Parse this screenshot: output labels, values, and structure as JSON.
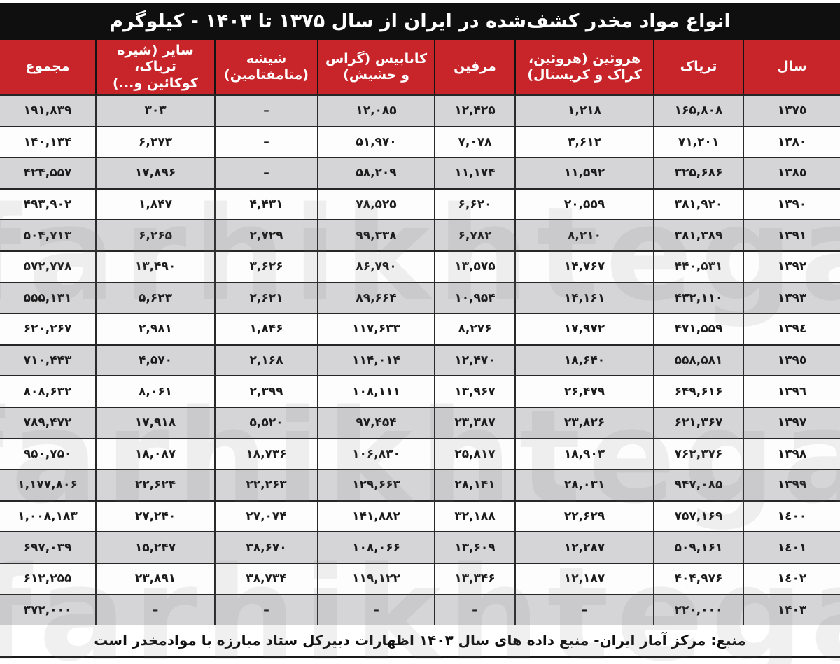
{
  "title": "انواع مواد مخدر کشف‌شده در ایران از سال ۱۳۷۵ تا ۱۴۰۳ - کیلوگرم",
  "header": {
    "columns": [
      {
        "key": "year",
        "label": "سال"
      },
      {
        "key": "opium",
        "label": "تریاک"
      },
      {
        "key": "heroin",
        "label": "هروئین (هروئین،\nکراک و کریستال)"
      },
      {
        "key": "morphine",
        "label": "مرفین"
      },
      {
        "key": "cannabis",
        "label": "کانابیس (گراس\nو حشیش)"
      },
      {
        "key": "meth",
        "label": "شیشه\n(متامفتامین)"
      },
      {
        "key": "other",
        "label": "سایر (شیره تریاک،\nکوکائین و...)"
      },
      {
        "key": "total",
        "label": "مجموع"
      }
    ]
  },
  "footer": {
    "text": "منبع: مرکز آمار ایران- منبع داده های سال ۱۴۰۳ اظهارات دبیرکل ستاد مبارزه با موادمخدر است"
  },
  "watermark": "farhikhtegan",
  "colors": {
    "accent_red": "#c8252b",
    "title_bar_black": "#0f0f0f",
    "row_alt_gray": "#d5d5d7",
    "grid_border": "#262626"
  },
  "empty_cell_glyph": "–",
  "chart_data": {
    "type": "table",
    "title": "انواع مواد مخدر کشف‌شده در ایران از سال ۱۳۷۵ تا ۱۴۰۳ - کیلوگرم",
    "unit": "کیلوگرم",
    "columns_rtl": [
      "سال",
      "تریاک",
      "هروئین (هروئین، کراک و کریستال)",
      "مرفین",
      "کانابیس (گراس و حشیش)",
      "شیشه (متامفتامین)",
      "سایر (شیره تریاک، کوکائین و...)",
      "مجموع"
    ],
    "rows_display": [
      [
        "۱۳۷٥",
        "۱۶۵,۸۰۸",
        "۱,۲۱۸",
        "۱۲,۴۲۵",
        "۱۲,۰۸۵",
        "–",
        "۳۰۳",
        "۱۹۱,۸۳۹"
      ],
      [
        "۱۳۸۰",
        "۷۱,۲۰۱",
        "۳,۶۱۲",
        "۷,۰۷۸",
        "۵۱,۹۷۰",
        "–",
        "۶,۲۷۳",
        "۱۴۰,۱۳۴"
      ],
      [
        "۱۳۸٥",
        "۳۲۵,۶۸۶",
        "۱۱,۵۹۲",
        "۱۱,۱۷۴",
        "۵۸,۲۰۹",
        "–",
        "۱۷,۸۹۶",
        "۴۲۴,۵۵۷"
      ],
      [
        "۱۳۹۰",
        "۳۸۱,۹۲۰",
        "۲۰,۵۵۹",
        "۶,۶۲۰",
        "۷۸,۵۲۵",
        "۴,۴۳۱",
        "۱,۸۴۷",
        "۴۹۳,۹۰۲"
      ],
      [
        "۱۳۹۱",
        "۳۸۱,۳۸۹",
        "۸,۲۱۰",
        "۶,۷۸۲",
        "۹۹,۳۳۸",
        "۲,۷۲۹",
        "۶,۲۶۵",
        "۵۰۴,۷۱۳"
      ],
      [
        "۱۳۹۲",
        "۴۴۰,۵۳۱",
        "۱۴,۷۶۷",
        "۱۳,۵۷۵",
        "۸۶,۷۹۰",
        "۳,۶۲۶",
        "۱۳,۴۹۰",
        "۵۷۲,۷۷۸"
      ],
      [
        "۱۳۹۳",
        "۴۳۲,۱۱۰",
        "۱۴,۱۶۱",
        "۱۰,۹۵۴",
        "۸۹,۶۶۴",
        "۲,۶۲۱",
        "۵,۶۲۳",
        "۵۵۵,۱۳۱"
      ],
      [
        "۱۳۹٤",
        "۴۷۱,۵۵۹",
        "۱۷,۹۷۲",
        "۸,۲۷۶",
        "۱۱۷,۶۳۳",
        "۱,۸۴۶",
        "۲,۹۸۱",
        "۶۲۰,۲۶۷"
      ],
      [
        "۱۳۹٥",
        "۵۵۸,۵۸۱",
        "۱۸,۶۴۰",
        "۱۲,۴۷۰",
        "۱۱۴,۰۱۴",
        "۲,۱۶۸",
        "۴,۵۷۰",
        "۷۱۰,۴۴۳"
      ],
      [
        "۱۳۹٦",
        "۶۴۹,۶۱۶",
        "۲۶,۴۷۹",
        "۱۳,۹۶۷",
        "۱۰۸,۱۱۱",
        "۲,۳۹۹",
        "۸,۰۶۱",
        "۸۰۸,۶۳۲"
      ],
      [
        "۱۳۹۷",
        "۶۲۱,۳۶۷",
        "۲۳,۸۲۶",
        "۲۳,۳۸۷",
        "۹۷,۴۵۴",
        "۵,۵۲۰",
        "۱۷,۹۱۸",
        "۷۸۹,۴۷۲"
      ],
      [
        "۱۳۹۸",
        "۷۶۲,۳۷۶",
        "۱۸,۹۰۳",
        "۲۵,۸۱۷",
        "۱۰۶,۸۳۰",
        "۱۸,۷۳۶",
        "۱۸,۰۸۷",
        "۹۵۰,۷۵۰"
      ],
      [
        "۱۳۹۹",
        "۹۴۷,۰۸۵",
        "۲۸,۰۳۱",
        "۲۸,۱۴۱",
        "۱۲۹,۶۶۳",
        "۲۲,۲۶۳",
        "۲۲,۶۲۴",
        "۱,۱۷۷,۸۰۶"
      ],
      [
        "۱٤۰۰",
        "۷۵۷,۱۶۹",
        "۲۲,۶۲۹",
        "۳۲,۱۸۸",
        "۱۴۱,۸۸۲",
        "۲۷,۰۷۴",
        "۲۷,۲۴۰",
        "۱,۰۰۸,۱۸۳"
      ],
      [
        "۱٤۰۱",
        "۵۰۹,۱۶۱",
        "۱۲,۲۸۷",
        "۱۳,۶۰۹",
        "۱۰۸,۰۶۶",
        "۳۸,۶۷۰",
        "۱۵,۲۴۷",
        "۶۹۷,۰۳۹"
      ],
      [
        "۱٤۰۲",
        "۴۰۴,۹۷۶",
        "۱۲,۱۸۷",
        "۱۳,۳۴۶",
        "۱۱۹,۱۲۲",
        "۳۸,۷۳۴",
        "۲۳,۸۹۱",
        "۶۱۲,۲۵۵"
      ],
      [
        "۱۴۰۳",
        "۲۲۰,۰۰۰",
        "–",
        "–",
        "–",
        "–",
        "–",
        "۳۷۲,۰۰۰"
      ]
    ],
    "years": [
      1375,
      1380,
      1385,
      1390,
      1391,
      1392,
      1393,
      1394,
      1395,
      1396,
      1397,
      1398,
      1399,
      1400,
      1401,
      1402,
      1403
    ],
    "series": [
      {
        "name": "تریاک",
        "values": [
          165808,
          71201,
          325686,
          381920,
          381389,
          440531,
          432110,
          471559,
          558581,
          649616,
          621367,
          762376,
          947085,
          757169,
          509161,
          404976,
          220000
        ]
      },
      {
        "name": "هروئین (هروئین، کراک و کریستال)",
        "values": [
          1218,
          3612,
          11592,
          20559,
          8210,
          14767,
          14161,
          17972,
          18640,
          26479,
          23826,
          18903,
          28031,
          22629,
          12287,
          12187,
          null
        ]
      },
      {
        "name": "مرفین",
        "values": [
          12425,
          7078,
          11174,
          6620,
          6782,
          13575,
          10954,
          8276,
          12470,
          13967,
          23387,
          25817,
          28141,
          32188,
          13609,
          13346,
          null
        ]
      },
      {
        "name": "کانابیس (گراس و حشیش)",
        "values": [
          12085,
          51970,
          58209,
          78525,
          99338,
          86790,
          89664,
          117633,
          114014,
          108111,
          97454,
          106830,
          129663,
          141882,
          108066,
          119122,
          null
        ]
      },
      {
        "name": "شیشه (متامفتامین)",
        "values": [
          null,
          null,
          null,
          4431,
          2729,
          3626,
          2621,
          1846,
          2168,
          2399,
          5520,
          18736,
          22263,
          27074,
          38670,
          38734,
          null
        ]
      },
      {
        "name": "سایر (شیره تریاک، کوکائین و...)",
        "values": [
          303,
          6273,
          17896,
          1847,
          6265,
          13490,
          5623,
          2981,
          4570,
          8061,
          17918,
          18087,
          22624,
          27240,
          15247,
          23891,
          null
        ]
      },
      {
        "name": "مجموع",
        "values": [
          191839,
          140134,
          424557,
          493902,
          504713,
          572778,
          555131,
          620267,
          710443,
          808632,
          789472,
          950750,
          1177806,
          1008183,
          697039,
          612255,
          372000
        ]
      }
    ],
    "source": "منبع: مرکز آمار ایران- منبع داده های سال ۱۴۰۳ اظهارات دبیرکل ستاد مبارزه با موادمخدر است"
  }
}
